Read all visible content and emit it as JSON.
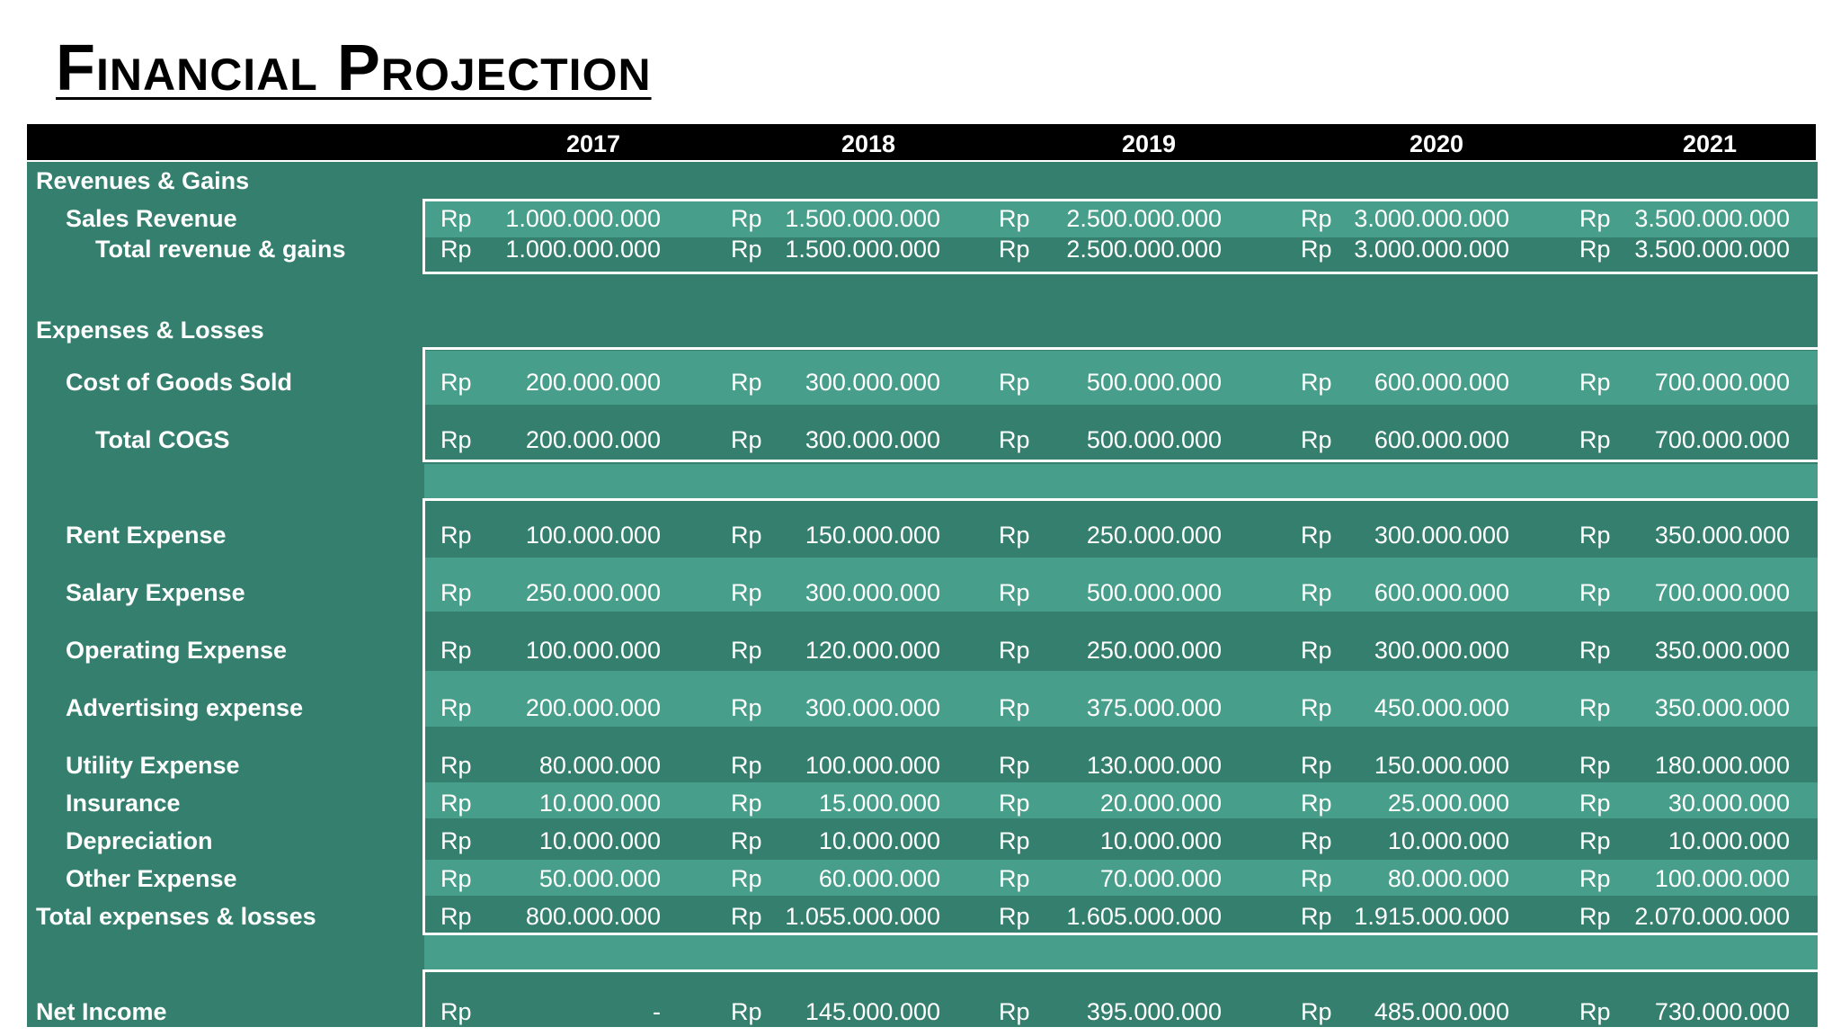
{
  "title": "Financial Projection",
  "years": [
    "2017",
    "2018",
    "2019",
    "2020",
    "2021"
  ],
  "currency": "Rp",
  "colors": {
    "header_bg": "#000000",
    "body_bg": "#357f6f",
    "band_bg": "#479e8a",
    "text": "#ffffff"
  },
  "sections": {
    "revenues_heading": "Revenues & Gains",
    "expenses_heading": "Expenses & Losses"
  },
  "rows": {
    "sales_revenue": {
      "label": "Sales Revenue",
      "values": [
        "1.000.000.000",
        "1.500.000.000",
        "2.500.000.000",
        "3.000.000.000",
        "3.500.000.000"
      ]
    },
    "total_revenue": {
      "label": "Total revenue & gains",
      "values": [
        "1.000.000.000",
        "1.500.000.000",
        "2.500.000.000",
        "3.000.000.000",
        "3.500.000.000"
      ]
    },
    "cogs": {
      "label": "Cost of Goods Sold",
      "values": [
        "200.000.000",
        "300.000.000",
        "500.000.000",
        "600.000.000",
        "700.000.000"
      ]
    },
    "total_cogs": {
      "label": "Total COGS",
      "values": [
        "200.000.000",
        "300.000.000",
        "500.000.000",
        "600.000.000",
        "700.000.000"
      ]
    },
    "rent": {
      "label": "Rent Expense",
      "values": [
        "100.000.000",
        "150.000.000",
        "250.000.000",
        "300.000.000",
        "350.000.000"
      ]
    },
    "salary": {
      "label": "Salary Expense",
      "values": [
        "250.000.000",
        "300.000.000",
        "500.000.000",
        "600.000.000",
        "700.000.000"
      ]
    },
    "operating": {
      "label": "Operating Expense",
      "values": [
        "100.000.000",
        "120.000.000",
        "250.000.000",
        "300.000.000",
        "350.000.000"
      ]
    },
    "advertising": {
      "label": "Advertising expense",
      "values": [
        "200.000.000",
        "300.000.000",
        "375.000.000",
        "450.000.000",
        "350.000.000"
      ]
    },
    "utility": {
      "label": "Utility Expense",
      "values": [
        "80.000.000",
        "100.000.000",
        "130.000.000",
        "150.000.000",
        "180.000.000"
      ]
    },
    "insurance": {
      "label": "Insurance",
      "values": [
        "10.000.000",
        "15.000.000",
        "20.000.000",
        "25.000.000",
        "30.000.000"
      ]
    },
    "depreciation": {
      "label": "Depreciation",
      "values": [
        "10.000.000",
        "10.000.000",
        "10.000.000",
        "10.000.000",
        "10.000.000"
      ]
    },
    "other": {
      "label": "Other Expense",
      "values": [
        "50.000.000",
        "60.000.000",
        "70.000.000",
        "80.000.000",
        "100.000.000"
      ]
    },
    "total_expenses": {
      "label": "Total expenses & losses",
      "values": [
        "800.000.000",
        "1.055.000.000",
        "1.605.000.000",
        "1.915.000.000",
        "2.070.000.000"
      ]
    },
    "net_income": {
      "label": "Net Income",
      "values": [
        "-",
        "145.000.000",
        "395.000.000",
        "485.000.000",
        "730.000.000"
      ]
    }
  }
}
